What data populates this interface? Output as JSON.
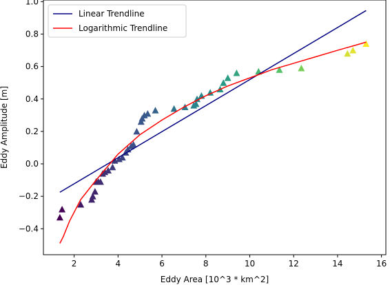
{
  "chart_data": {
    "type": "scatter",
    "xlabel": "Eddy Area [10^3 * km^2]",
    "ylabel": "Eddy Amplitude [m]",
    "xlim": [
      0.6,
      16.2
    ],
    "ylim": [
      -0.56,
      1.01
    ],
    "x_ticks": [
      2,
      4,
      6,
      8,
      10,
      12,
      14,
      16
    ],
    "y_ticks": [
      -0.4,
      -0.2,
      0.0,
      0.2,
      0.4,
      0.6,
      0.8,
      1.0
    ],
    "x_tick_labels": [
      "2",
      "4",
      "6",
      "8",
      "10",
      "12",
      "14",
      "16"
    ],
    "y_tick_labels": [
      "−0.4",
      "−0.2",
      "0.0",
      "0.2",
      "0.4",
      "0.6",
      "0.8",
      "1.0"
    ],
    "legend": {
      "placement": "upper-left",
      "entries": [
        {
          "label": "Linear Trendline",
          "color": "#000080"
        },
        {
          "label": "Logarithmic Trendline",
          "color": "#ff0000"
        }
      ]
    },
    "points": [
      {
        "x": 1.35,
        "y": -0.33
      },
      {
        "x": 1.45,
        "y": -0.28
      },
      {
        "x": 2.3,
        "y": -0.25
      },
      {
        "x": 2.8,
        "y": -0.22
      },
      {
        "x": 2.85,
        "y": -0.2
      },
      {
        "x": 2.95,
        "y": -0.17
      },
      {
        "x": 3.0,
        "y": -0.11
      },
      {
        "x": 3.1,
        "y": -0.11
      },
      {
        "x": 3.2,
        "y": -0.11
      },
      {
        "x": 3.3,
        "y": -0.06
      },
      {
        "x": 3.4,
        "y": -0.05
      },
      {
        "x": 3.55,
        "y": -0.04
      },
      {
        "x": 3.75,
        "y": -0.02
      },
      {
        "x": 3.85,
        "y": 0.02
      },
      {
        "x": 4.05,
        "y": 0.03
      },
      {
        "x": 4.2,
        "y": 0.04
      },
      {
        "x": 4.35,
        "y": 0.07
      },
      {
        "x": 4.45,
        "y": 0.09
      },
      {
        "x": 4.6,
        "y": 0.11
      },
      {
        "x": 4.7,
        "y": 0.12
      },
      {
        "x": 4.85,
        "y": 0.2
      },
      {
        "x": 5.05,
        "y": 0.26
      },
      {
        "x": 5.1,
        "y": 0.28
      },
      {
        "x": 5.2,
        "y": 0.3
      },
      {
        "x": 5.35,
        "y": 0.31
      },
      {
        "x": 5.7,
        "y": 0.33
      },
      {
        "x": 6.55,
        "y": 0.34
      },
      {
        "x": 7.05,
        "y": 0.35
      },
      {
        "x": 7.45,
        "y": 0.36
      },
      {
        "x": 7.55,
        "y": 0.37
      },
      {
        "x": 7.6,
        "y": 0.4
      },
      {
        "x": 7.8,
        "y": 0.42
      },
      {
        "x": 8.2,
        "y": 0.44
      },
      {
        "x": 8.65,
        "y": 0.46
      },
      {
        "x": 8.8,
        "y": 0.5
      },
      {
        "x": 9.0,
        "y": 0.53
      },
      {
        "x": 9.4,
        "y": 0.56
      },
      {
        "x": 10.4,
        "y": 0.57
      },
      {
        "x": 11.35,
        "y": 0.58
      },
      {
        "x": 12.35,
        "y": 0.59
      },
      {
        "x": 14.45,
        "y": 0.68
      },
      {
        "x": 14.7,
        "y": 0.7
      },
      {
        "x": 15.3,
        "y": 0.74
      }
    ],
    "linear_trendline": {
      "x": [
        1.35,
        15.3
      ],
      "y": [
        -0.175,
        0.945
      ]
    },
    "logarithmic_trendline": {
      "x": [
        1.35,
        1.5,
        1.8,
        2.3,
        3.0,
        4.0,
        5.0,
        6.0,
        7.0,
        8.0,
        9.0,
        10.0,
        11.0,
        12.0,
        13.0,
        14.0,
        15.3
      ],
      "y": [
        -0.49,
        -0.45,
        -0.35,
        -0.22,
        -0.1,
        0.06,
        0.18,
        0.27,
        0.35,
        0.42,
        0.48,
        0.53,
        0.58,
        0.62,
        0.66,
        0.7,
        0.75
      ]
    }
  }
}
